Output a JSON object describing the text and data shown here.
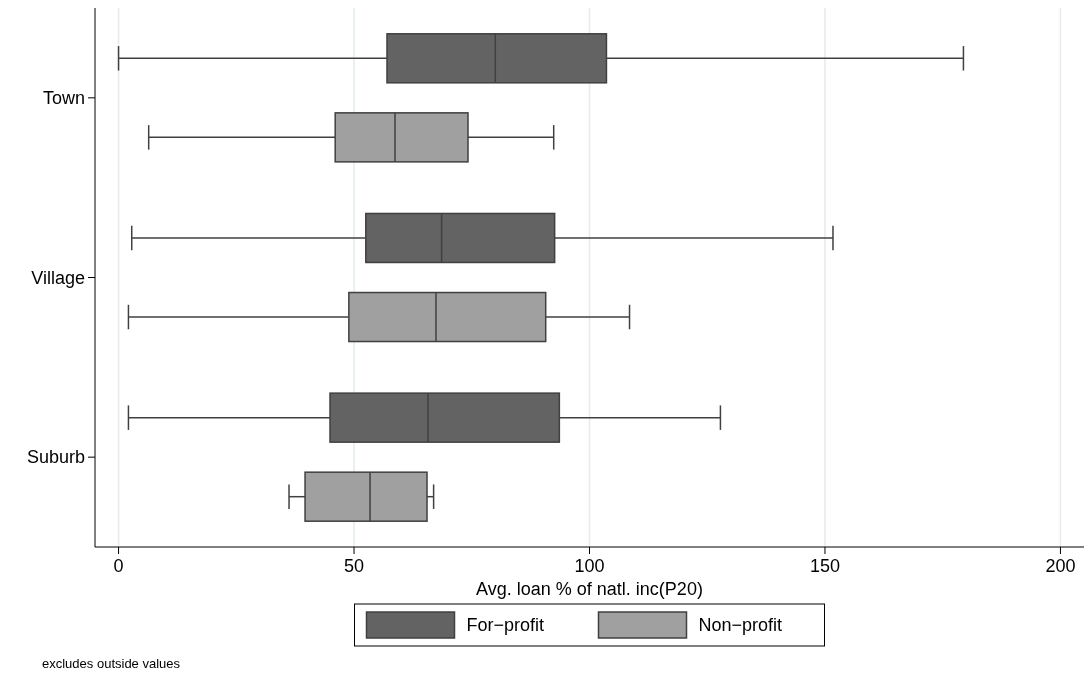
{
  "chart_data": {
    "type": "box",
    "orientation": "horizontal",
    "xlabel": "Avg. loan % of natl. inc(P20)",
    "categories": [
      "Town",
      "Village",
      "Suburb"
    ],
    "series": [
      {
        "name": "For−profit",
        "color": "#636363",
        "boxes": [
          {
            "low": 0,
            "q1": 57,
            "median": 80,
            "q3": 103.6,
            "high": 179.4
          },
          {
            "low": 2.8,
            "q1": 52.5,
            "median": 68.6,
            "q3": 92.6,
            "high": 151.7
          },
          {
            "low": 2.1,
            "q1": 44.9,
            "median": 65.7,
            "q3": 93.6,
            "high": 127.8
          }
        ]
      },
      {
        "name": "Non−profit",
        "color": "#a0a0a0",
        "boxes": [
          {
            "low": 6.4,
            "q1": 46,
            "median": 58.7,
            "q3": 74.2,
            "high": 92.4
          },
          {
            "low": 2.1,
            "q1": 48.9,
            "median": 67.4,
            "q3": 90.7,
            "high": 108.5
          },
          {
            "low": 36.2,
            "q1": 39.6,
            "median": 53.4,
            "q3": 65.5,
            "high": 66.9
          }
        ]
      }
    ],
    "xlim": [
      -5,
      205
    ],
    "xticks": [
      0,
      50,
      100,
      150,
      200
    ],
    "grid": "x",
    "legend": "bottom",
    "annotations": [
      "excludes outside values"
    ]
  }
}
